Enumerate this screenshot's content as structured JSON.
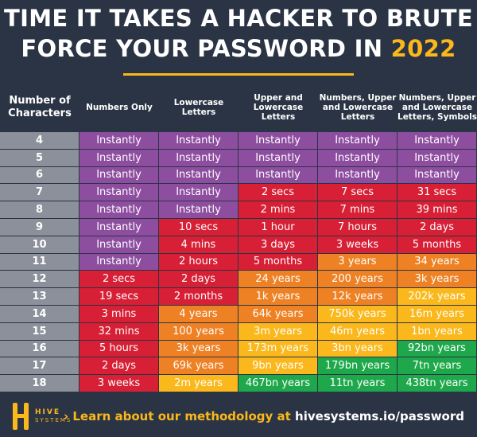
{
  "title": {
    "line1": "TIME IT TAKES A HACKER TO BRUTE",
    "line2_prefix": "FORCE YOUR PASSWORD IN ",
    "year": "2022"
  },
  "colors": {
    "background": "#2b3444",
    "accent": "#fbb81c",
    "p": "#8e4ea0",
    "r": "#d71f35",
    "o": "#ee8124",
    "y": "#fbb81c",
    "g": "#1ea84b",
    "number_column": "#8b909a"
  },
  "headers": [
    "Number of Characters",
    "Numbers Only",
    "Lowercase Letters",
    "Upper and Lowercase Letters",
    "Numbers, Upper and Lowercase Letters",
    "Numbers, Upper and Lowercase Letters, Symbols"
  ],
  "rows": [
    {
      "chars": "4",
      "times": [
        "Instantly",
        "Instantly",
        "Instantly",
        "Instantly",
        "Instantly"
      ],
      "levels": "ppppp"
    },
    {
      "chars": "5",
      "times": [
        "Instantly",
        "Instantly",
        "Instantly",
        "Instantly",
        "Instantly"
      ],
      "levels": "ppppp"
    },
    {
      "chars": "6",
      "times": [
        "Instantly",
        "Instantly",
        "Instantly",
        "Instantly",
        "Instantly"
      ],
      "levels": "ppppp"
    },
    {
      "chars": "7",
      "times": [
        "Instantly",
        "Instantly",
        "2 secs",
        "7 secs",
        "31 secs"
      ],
      "levels": "pprrr"
    },
    {
      "chars": "8",
      "times": [
        "Instantly",
        "Instantly",
        "2 mins",
        "7 mins",
        "39 mins"
      ],
      "levels": "pprrr"
    },
    {
      "chars": "9",
      "times": [
        "Instantly",
        "10 secs",
        "1 hour",
        "7 hours",
        "2 days"
      ],
      "levels": "prrrr"
    },
    {
      "chars": "10",
      "times": [
        "Instantly",
        "4 mins",
        "3 days",
        "3 weeks",
        "5 months"
      ],
      "levels": "prrrr"
    },
    {
      "chars": "11",
      "times": [
        "Instantly",
        "2 hours",
        "5 months",
        "3 years",
        "34 years"
      ],
      "levels": "prroo"
    },
    {
      "chars": "12",
      "times": [
        "2 secs",
        "2 days",
        "24 years",
        "200 years",
        "3k years"
      ],
      "levels": "rrooo"
    },
    {
      "chars": "13",
      "times": [
        "19 secs",
        "2 months",
        "1k years",
        "12k years",
        "202k years"
      ],
      "levels": "rrooy"
    },
    {
      "chars": "14",
      "times": [
        "3 mins",
        "4 years",
        "64k years",
        "750k years",
        "16m years"
      ],
      "levels": "rooyy"
    },
    {
      "chars": "15",
      "times": [
        "32 mins",
        "100 years",
        "3m years",
        "46m years",
        "1bn years"
      ],
      "levels": "royyy"
    },
    {
      "chars": "16",
      "times": [
        "5 hours",
        "3k years",
        "173m years",
        "3bn years",
        "92bn years"
      ],
      "levels": "royyg"
    },
    {
      "chars": "17",
      "times": [
        "2 days",
        "69k years",
        "9bn years",
        "179bn years",
        "7tn years"
      ],
      "levels": "roygg"
    },
    {
      "chars": "18",
      "times": [
        "3 weeks",
        "2m years",
        "467bn years",
        "11tn years",
        "438tn years"
      ],
      "levels": "ryggg"
    }
  ],
  "footer": {
    "logo_name": "HIVE",
    "logo_sub": "SYSTEMS",
    "cta_lead": "› Learn about our methodology at ",
    "cta_link": "hivesystems.io/password"
  }
}
